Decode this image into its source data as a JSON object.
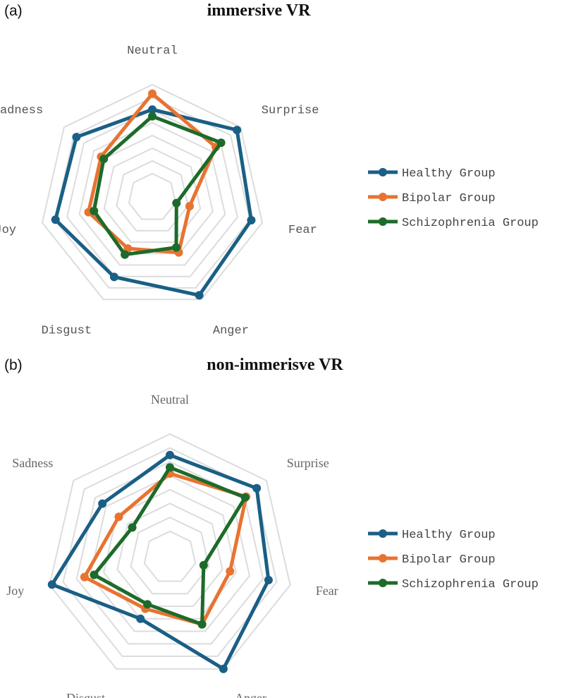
{
  "panels": [
    {
      "label": "(a)",
      "title": "immersive VR"
    },
    {
      "label": "(b)",
      "title": "non-immerisve VR"
    }
  ],
  "chart_data": [
    {
      "type": "radar",
      "title": "immersive VR",
      "axes": [
        "Neutral",
        "Surprise",
        "Fear",
        "Anger",
        "Disgust",
        "Joy",
        "Sadness"
      ],
      "range": [
        0,
        1
      ],
      "grid": true,
      "grid_levels": 8,
      "legend_position": "right",
      "series": [
        {
          "name": "Healthy Group",
          "color": "#1a5f85",
          "values": [
            0.78,
            0.96,
            0.9,
            0.96,
            0.78,
            0.88,
            0.86
          ]
        },
        {
          "name": "Bipolar Group",
          "color": "#e87330",
          "values": [
            0.92,
            0.72,
            0.34,
            0.54,
            0.5,
            0.58,
            0.58
          ]
        },
        {
          "name": "Schizophrenia Group",
          "color": "#1d6b2a",
          "values": [
            0.72,
            0.78,
            0.22,
            0.49,
            0.56,
            0.53,
            0.55
          ]
        }
      ]
    },
    {
      "type": "radar",
      "title": "non-immerisve VR",
      "axes": [
        "Neutral",
        "Surprise",
        "Fear",
        "Anger",
        "Disgust",
        "Joy",
        "Sadness"
      ],
      "range": [
        0,
        1
      ],
      "grid": true,
      "grid_levels": 8,
      "legend_position": "right",
      "series": [
        {
          "name": "Healthy Group",
          "color": "#1a5f85",
          "values": [
            0.83,
            0.9,
            0.82,
            1.0,
            0.55,
            0.98,
            0.7
          ]
        },
        {
          "name": "Bipolar Group",
          "color": "#e87330",
          "values": [
            0.68,
            0.79,
            0.5,
            0.6,
            0.46,
            0.71,
            0.53
          ]
        },
        {
          "name": "Schizophrenia Group",
          "color": "#1d6b2a",
          "values": [
            0.73,
            0.78,
            0.28,
            0.6,
            0.42,
            0.63,
            0.39
          ]
        }
      ]
    }
  ]
}
